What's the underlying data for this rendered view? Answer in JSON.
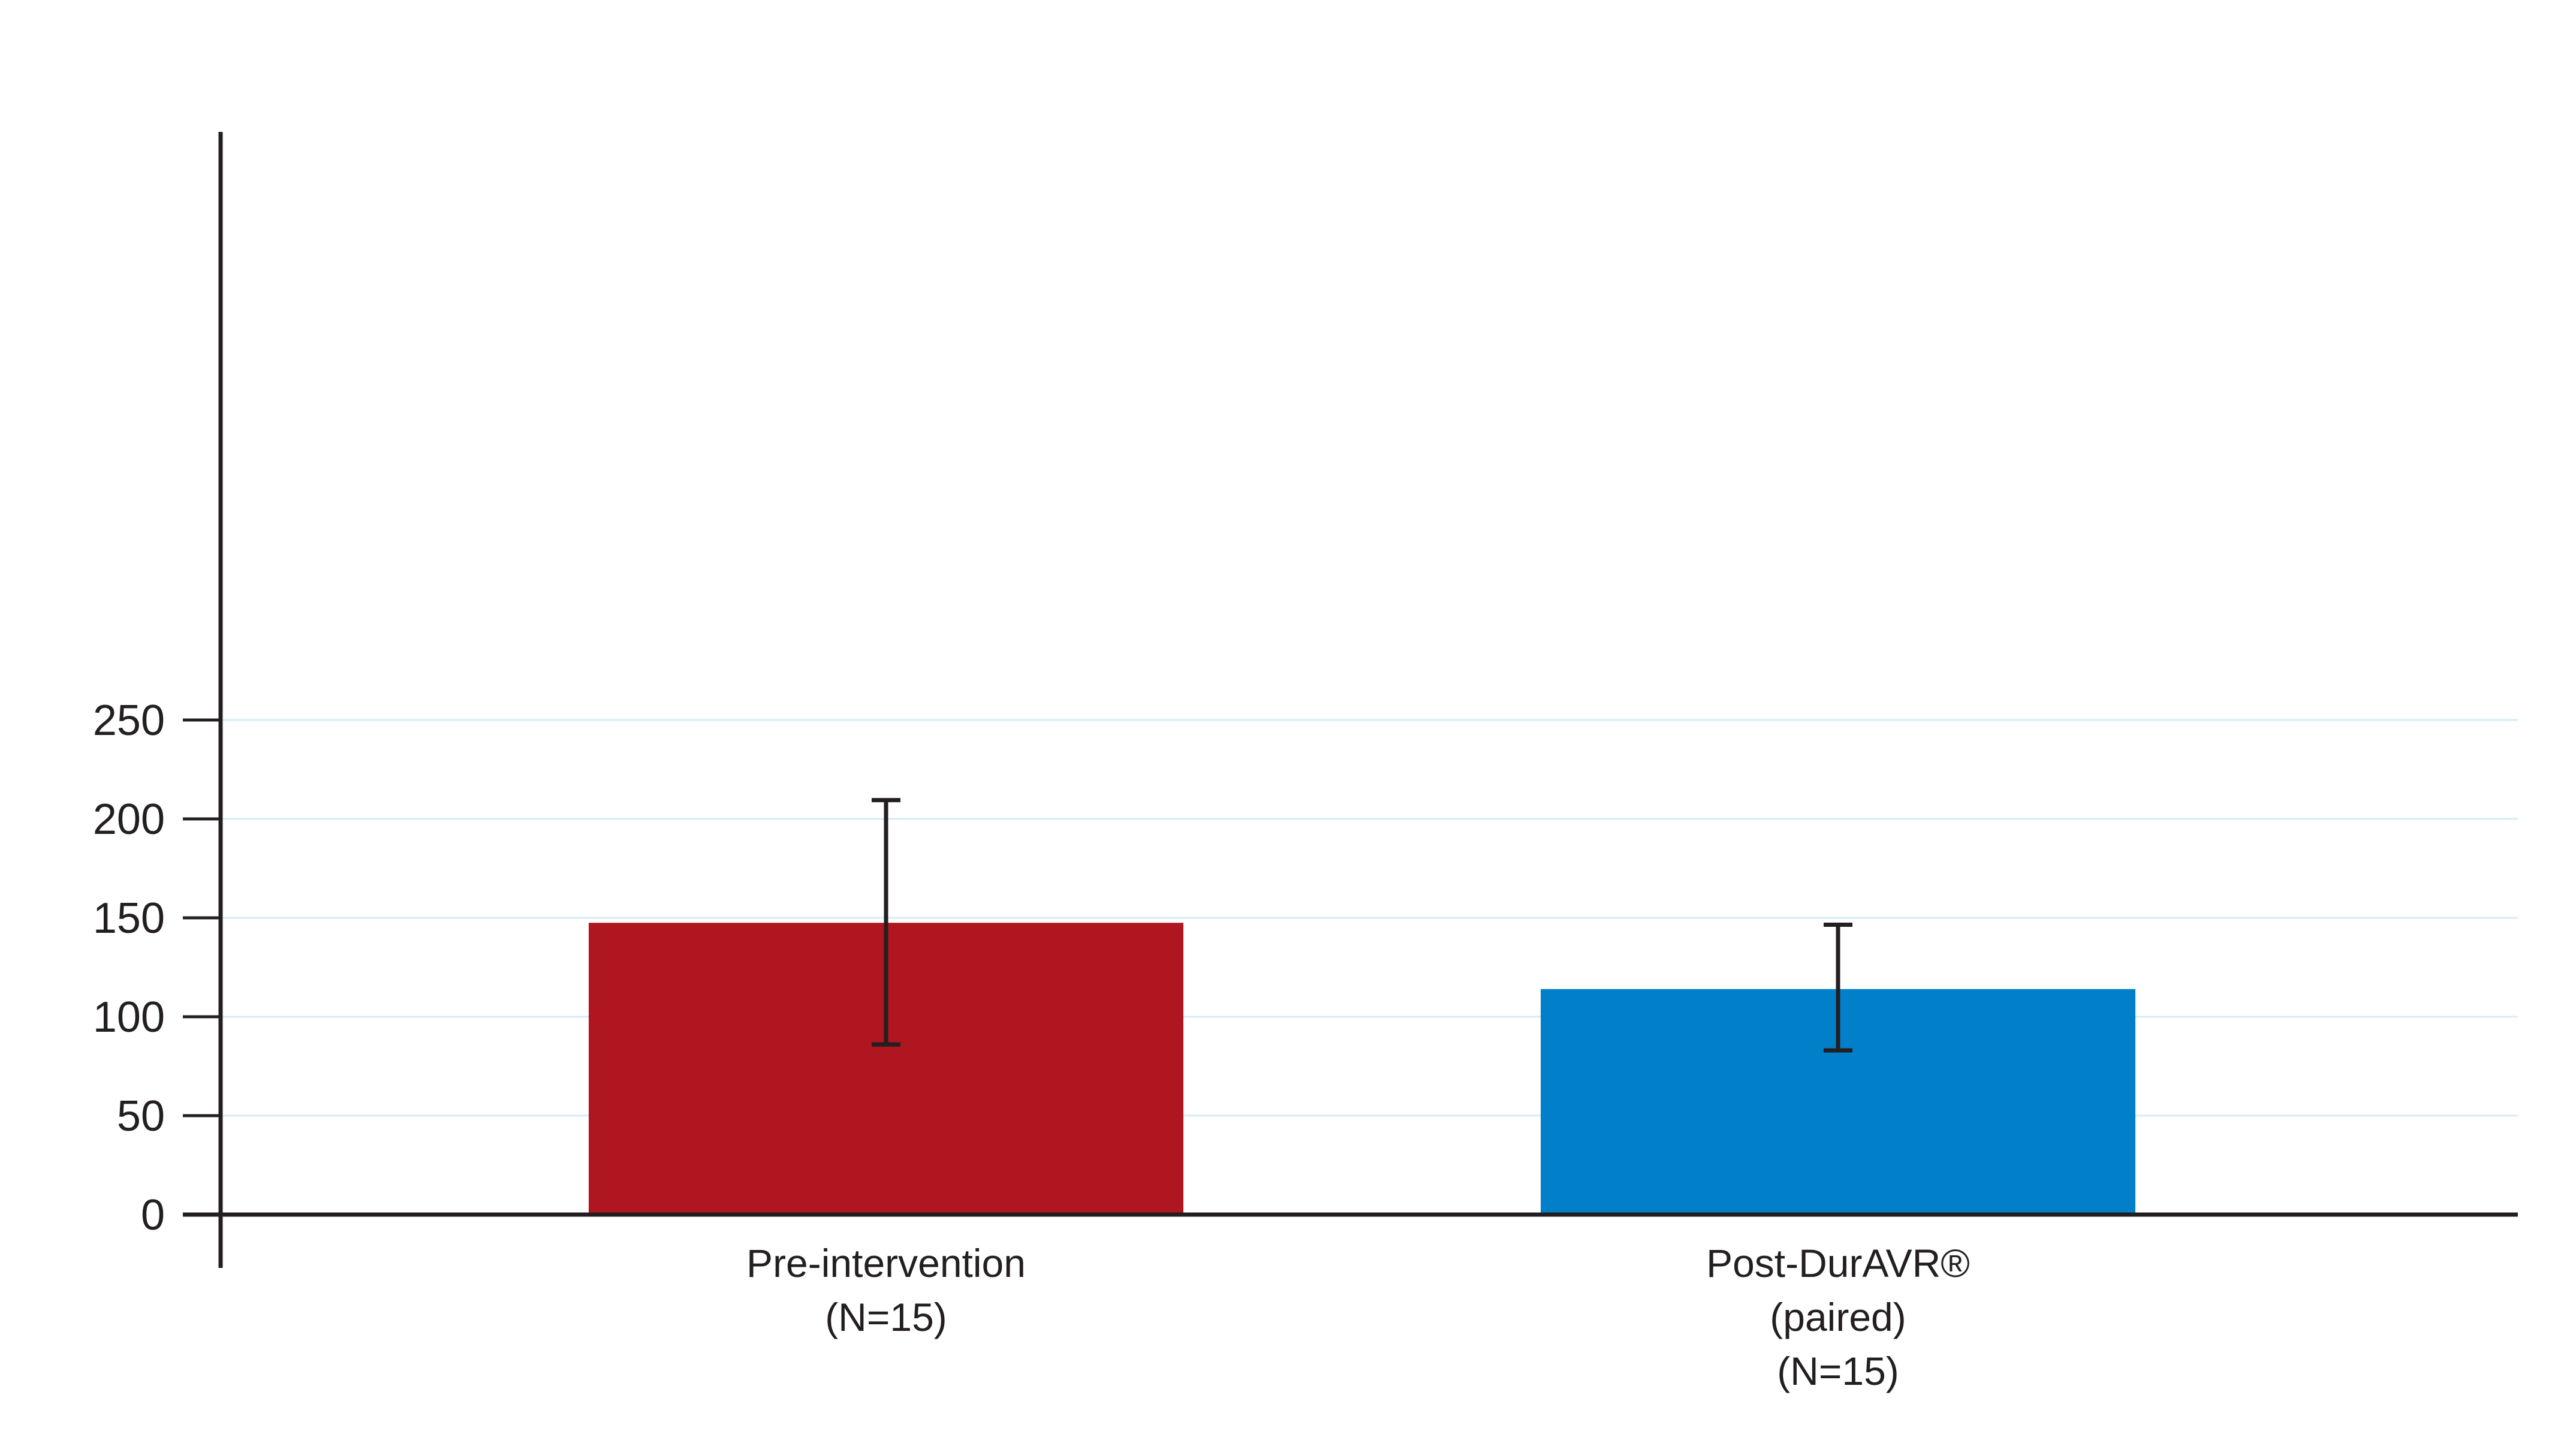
{
  "chart_data": {
    "type": "bar",
    "title": "",
    "xlabel": "",
    "ylabel": "",
    "ylim": [
      0,
      275
    ],
    "yticks": [
      0,
      50,
      100,
      150,
      200,
      250
    ],
    "grid": true,
    "categories": [
      [
        "Pre-intervention",
        "(N=15)"
      ],
      [
        "Post-DurAVR®",
        "(paired)",
        "(N=15)"
      ]
    ],
    "values": [
      147.5,
      114
    ],
    "error_bars": [
      {
        "low": 86,
        "high": 209.5
      },
      {
        "low": 83,
        "high": 146.5
      }
    ],
    "colors": [
      "#af1620",
      "#0180c9"
    ]
  }
}
